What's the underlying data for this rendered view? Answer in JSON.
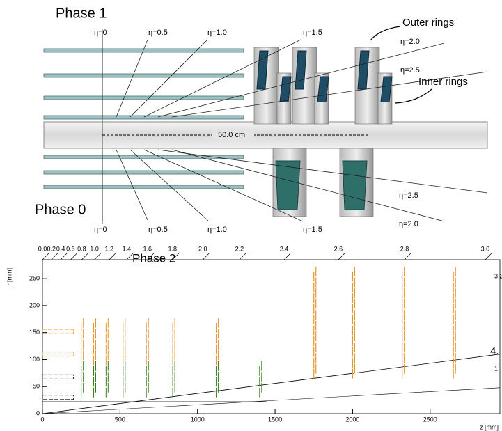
{
  "phase1": {
    "title": "Phase 1",
    "eta_labels": [
      "η=0",
      "η=0.5",
      "η=1.0",
      "η=1.5",
      "η=2.0",
      "η=2.5"
    ],
    "outer_rings": "Outer rings",
    "inner_rings": "Inner rings",
    "scale": "50.0 cm"
  },
  "phase0": {
    "title": "Phase 0",
    "eta_labels": [
      "η=0",
      "η=0.5",
      "η=1.0",
      "η=1.5",
      "η=2.5",
      "η=2.0"
    ]
  },
  "phase2": {
    "title": "Phase 2",
    "xlabel": "z [mm]",
    "ylabel": "r [mm]",
    "xlim": [
      0,
      2950
    ],
    "ylim": [
      0,
      285
    ],
    "xticks": [
      0,
      500,
      1000,
      1500,
      2000,
      2500
    ],
    "yticks": [
      0,
      50,
      100,
      150,
      200,
      250
    ],
    "eta_ticks": [
      {
        "value": 0,
        "label": "0.0"
      },
      {
        "value": 0.2,
        "label": "0.2"
      },
      {
        "value": 0.4,
        "label": "0.4"
      },
      {
        "value": 0.6,
        "label": "0.6"
      },
      {
        "value": 0.8,
        "label": "0.8"
      },
      {
        "value": 1,
        "label": "1.0"
      },
      1.2,
      1.4,
      1.6,
      1.8,
      {
        "value": 2,
        "label": "2.0"
      },
      2.2,
      2.4,
      2.6,
      2.8,
      {
        "value": 3,
        "label": "3.0"
      }
    ],
    "edge_labels": [
      "3.2",
      "4.",
      "1"
    ]
  }
}
